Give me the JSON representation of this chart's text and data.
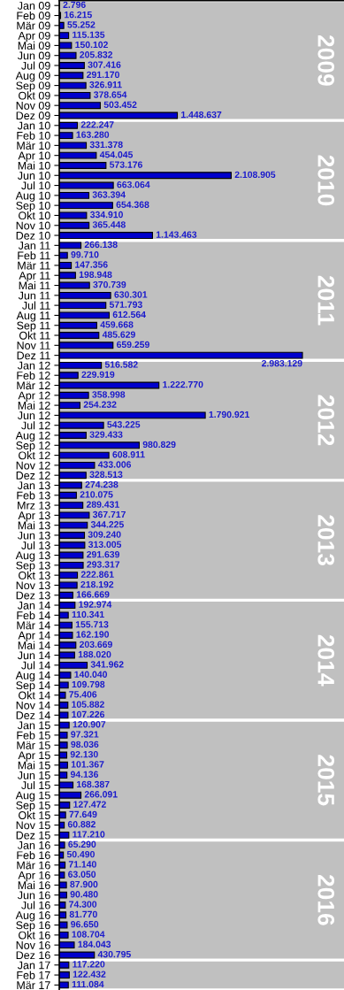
{
  "chart_data": {
    "type": "bar",
    "orientation": "horizontal",
    "tick_labels": "y",
    "grid": false,
    "legend": false,
    "color": "#0000cc",
    "categories": [
      "Jan 09",
      "Feb 09",
      "Mär 09",
      "Apr 09",
      "Mai 09",
      "Jun 09",
      "Jul 09",
      "Aug 09",
      "Sep 09",
      "Okt 09",
      "Nov 09",
      "Dez 09",
      "Jan 10",
      "Feb 10",
      "Mär 10",
      "Apr 10",
      "Mai 10",
      "Jun 10",
      "Jul 10",
      "Aug 10",
      "Sep 10",
      "Okt 10",
      "Nov 10",
      "Dez 10",
      "Jan 11",
      "Feb 11",
      "Mär 11",
      "Apr 11",
      "Mai 11",
      "Jun 11",
      "Jul 11",
      "Aug 11",
      "Sep 11",
      "Okt 11",
      "Nov 11",
      "Dez 11",
      "Jan 12",
      "Feb 12",
      "Mär 12",
      "Apr 12",
      "Mai 12",
      "Jun 12",
      "Jul 12",
      "Aug 12",
      "Sep 12",
      "Okt 12",
      "Nov 12",
      "Dez 12",
      "Jan 13",
      "Feb 13",
      "Mrz 13",
      "Apr 13",
      "Mai 13",
      "Jun 13",
      "Jul 13",
      "Aug 13",
      "Sep 13",
      "Okt 13",
      "Nov 13",
      "Dez 13",
      "Jan 14",
      "Feb 14",
      "Mär 14",
      "Apr 14",
      "Mai 14",
      "Jun 14",
      "Jul 14",
      "Aug 14",
      "Sep 14",
      "Okt 14",
      "Nov 14",
      "Dez 14",
      "Jan 15",
      "Feb 15",
      "Mär 15",
      "Apr 15",
      "Mai 15",
      "Jun 15",
      "Jul 15",
      "Aug 15",
      "Sep 15",
      "Okt 15",
      "Nov 15",
      "Dez 15",
      "Jan 16",
      "Feb 16",
      "Mär 16",
      "Apr 16",
      "Mai 16",
      "Jun 16",
      "Jul 16",
      "Aug 16",
      "Sep 16",
      "Okt 16",
      "Nov 16",
      "Dez 16",
      "Jan 17",
      "Feb 17",
      "Mär 17"
    ],
    "values": [
      2796,
      16215,
      55252,
      115135,
      150102,
      205832,
      307416,
      291170,
      326911,
      378654,
      503452,
      1448637,
      222247,
      163280,
      331378,
      454045,
      573176,
      2108905,
      663064,
      363394,
      654368,
      334910,
      365448,
      1143463,
      266138,
      99710,
      147356,
      198948,
      370739,
      630301,
      571793,
      612564,
      459668,
      485629,
      659259,
      2983129,
      516582,
      229919,
      1222770,
      358998,
      254232,
      1790921,
      543225,
      329433,
      980829,
      608911,
      433006,
      328513,
      274238,
      210075,
      289431,
      367717,
      344225,
      309240,
      313005,
      291639,
      293317,
      222861,
      218192,
      166669,
      192974,
      110341,
      155713,
      162190,
      203669,
      188020,
      341962,
      140040,
      109798,
      75406,
      105882,
      107226,
      120907,
      97321,
      98036,
      92130,
      101367,
      94136,
      168387,
      266091,
      127472,
      77649,
      60882,
      117210,
      65290,
      50490,
      71140,
      63050,
      87900,
      90480,
      74300,
      81770,
      96650,
      108704,
      184043,
      430795,
      117220,
      122432,
      111084
    ],
    "value_labels": [
      "2.796",
      "16.215",
      "55.252",
      "115.135",
      "150.102",
      "205.832",
      "307.416",
      "291.170",
      "326.911",
      "378.654",
      "503.452",
      "1.448.637",
      "222.247",
      "163.280",
      "331.378",
      "454.045",
      "573.176",
      "2.108.905",
      "663.064",
      "363.394",
      "654.368",
      "334.910",
      "365.448",
      "1.143.463",
      "266.138",
      "99.710",
      "147.356",
      "198.948",
      "370.739",
      "630.301",
      "571.793",
      "612.564",
      "459.668",
      "485.629",
      "659.259",
      "2.983.129",
      "516.582",
      "229.919",
      "1.222.770",
      "358.998",
      "254.232",
      "1.790.921",
      "543.225",
      "329.433",
      "980.829",
      "608.911",
      "433.006",
      "328.513",
      "274.238",
      "210.075",
      "289.431",
      "367.717",
      "344.225",
      "309.240",
      "313.005",
      "291.639",
      "293.317",
      "222.861",
      "218.192",
      "166.669",
      "192.974",
      "110.341",
      "155.713",
      "162.190",
      "203.669",
      "188.020",
      "341.962",
      "140.040",
      "109.798",
      "75.406",
      "105.882",
      "107.226",
      "120.907",
      "97.321",
      "98.036",
      "92.130",
      "101.367",
      "94.136",
      "168.387",
      "266.091",
      "127.472",
      "77.649",
      "60.882",
      "117.210",
      "65.290",
      "50.490",
      "71.140",
      "63.050",
      "87.900",
      "90.480",
      "74.300",
      "81.770",
      "96.650",
      "108.704",
      "184.043",
      "430.795",
      "117.220",
      "122.432",
      "111.084"
    ],
    "bands": [
      {
        "axis": "y",
        "from": "Jan 09",
        "to": "Dez 09",
        "label": "2009",
        "color": "#c0c0c0"
      },
      {
        "axis": "y",
        "from": "Jan 10",
        "to": "Dez 10",
        "label": "2010",
        "color": "#c0c0c0"
      },
      {
        "axis": "y",
        "from": "Jan 11",
        "to": "Dez 11",
        "label": "2011",
        "color": "#c0c0c0"
      },
      {
        "axis": "y",
        "from": "Jan 12",
        "to": "Dez 12",
        "label": "2012",
        "color": "#c0c0c0"
      },
      {
        "axis": "y",
        "from": "Jan 13",
        "to": "Dez 13",
        "label": "2013",
        "color": "#c0c0c0"
      },
      {
        "axis": "y",
        "from": "Jan 14",
        "to": "Dez 14",
        "label": "2014",
        "color": "#c0c0c0"
      },
      {
        "axis": "y",
        "from": "Jan 15",
        "to": "Dez 15",
        "label": "2015",
        "color": "#c0c0c0"
      },
      {
        "axis": "y",
        "from": "Jan 16",
        "to": "Dez 16",
        "label": "2016",
        "color": "#c0c0c0"
      },
      {
        "axis": "y",
        "from": "Jan 17",
        "to": "Mär 17",
        "color": "#c0c0c0"
      }
    ]
  }
}
